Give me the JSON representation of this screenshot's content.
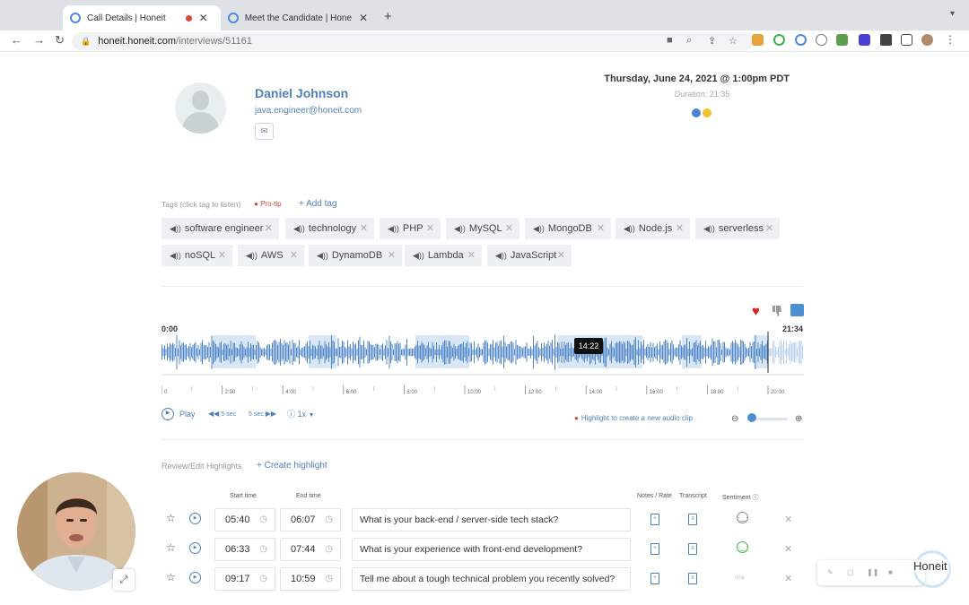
{
  "browser": {
    "tabs": [
      {
        "title": "Call Details | Honeit",
        "active": true
      },
      {
        "title": "Meet the Candidate | Honeit S",
        "active": false
      }
    ],
    "url_host": "honeit.honeit.com",
    "url_path": "/interviews/51161"
  },
  "candidate": {
    "name": "Daniel Johnson",
    "email": "java.engineer@honeit.com"
  },
  "call": {
    "date": "Thursday, June 24, 2021 @ 1:00pm PDT",
    "duration": "Duration: 21:35",
    "participant_colors": [
      "#4a86d0",
      "#f2c12e"
    ]
  },
  "tags": {
    "label": "Tags (click tag to listen)",
    "pro_tip": "Pro-tip",
    "add_tag": "+ Add tag",
    "items": [
      "software engineer",
      "technology",
      "PHP",
      "MySQL",
      "MongoDB",
      "Node.js",
      "serverless",
      "noSQL",
      "AWS",
      "DynamoDB",
      "Lambda",
      "JavaScript"
    ]
  },
  "player": {
    "start": "0:00",
    "end": "21:34",
    "tooltip": "14:22",
    "play": "Play",
    "back": "5 sec",
    "forward": "5 sec",
    "speed": "1x",
    "clip_hint": "Highlight to create a new audio clip",
    "timeline_labels": [
      "0",
      "2:00",
      "4:00",
      "6:00",
      "8:00",
      "10:00",
      "12:00",
      "14:00",
      "16:00",
      "18:00",
      "20:00"
    ]
  },
  "highlights": {
    "label": "Review/Edit Highlights",
    "create": "+ Create highlight",
    "headers": {
      "start": "Start time",
      "end": "End time",
      "notes": "Notes / Rate",
      "transcript": "Transcript",
      "sentiment": "Sentiment"
    },
    "rows": [
      {
        "start": "05:40",
        "end": "06:07",
        "question": "What is your back-end / server-side tech stack?",
        "sentiment": "neutral"
      },
      {
        "start": "06:33",
        "end": "07:44",
        "question": "What is your experience with front-end development?",
        "sentiment": "positive"
      },
      {
        "start": "09:17",
        "end": "10:59",
        "question": "Tell me about a tough technical problem you recently solved?",
        "sentiment": "n/a"
      }
    ]
  },
  "brand": "Honeit"
}
